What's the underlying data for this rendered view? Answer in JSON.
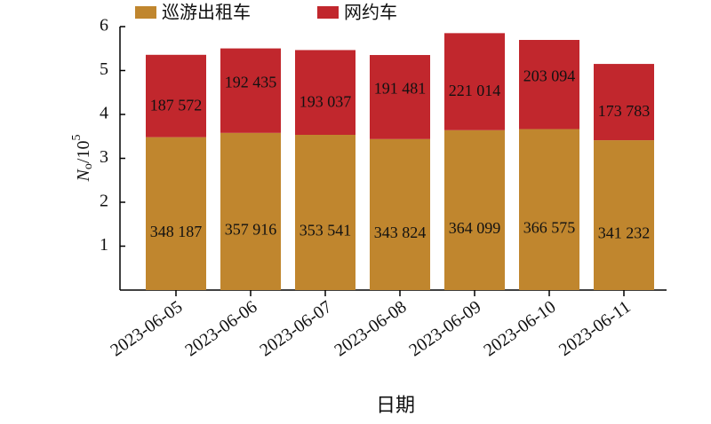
{
  "chart_data": {
    "type": "stacked-bar",
    "categories": [
      "2023-06-05",
      "2023-06-06",
      "2023-06-07",
      "2023-06-08",
      "2023-06-09",
      "2023-06-10",
      "2023-06-11"
    ],
    "series": [
      {
        "name": "巡游出租车",
        "color": "#c0862e",
        "values": [
          3.48187,
          3.57916,
          3.53541,
          3.43824,
          3.64099,
          3.66575,
          3.41232
        ],
        "value_labels": [
          "348 187",
          "357 916",
          "353 541",
          "343 824",
          "364 099",
          "366 575",
          "341 232"
        ]
      },
      {
        "name": "网约车",
        "color": "#c1272d",
        "values": [
          1.87572,
          1.92435,
          1.93037,
          1.91481,
          2.21014,
          2.03094,
          1.73783
        ],
        "value_labels": [
          "187 572",
          "192 435",
          "193 037",
          "191 481",
          "221 014",
          "203 094",
          "173 783"
        ]
      }
    ],
    "ylim": [
      0,
      6
    ],
    "yticks": [
      1,
      2,
      3,
      4,
      5,
      6
    ],
    "ylabel": [
      "N",
      "o",
      "/10",
      "5"
    ],
    "xlabel": "日期"
  }
}
